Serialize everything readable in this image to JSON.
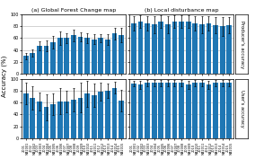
{
  "y_label": "Accuracy (%)",
  "chart_data": [
    {
      "type": "bar",
      "title": "(a) Global Forest Change map",
      "categories": [
        "2001\nMA2001",
        "2002\nMA2002",
        "2003\nMA2003",
        "2004\nMA2004",
        "2005\nMA2005",
        "2006\nMA2006",
        "2007\nMA2007",
        "2008\nMA2008",
        "2009\nMA2009",
        "2010\nMA2010",
        "2011\nMA2011",
        "2012\nMA2012",
        "2013\nMA2013",
        "2014\nMA2014",
        "2015\nMA2015"
      ],
      "values": [
        30,
        35,
        47,
        47,
        53,
        60,
        60,
        65,
        62,
        60,
        58,
        60,
        58,
        68,
        65
      ],
      "errors": [
        5,
        6,
        8,
        9,
        10,
        12,
        8,
        10,
        8,
        9,
        8,
        7,
        9,
        10,
        12
      ],
      "ylim": [
        0,
        100
      ],
      "yticks": [
        0,
        20,
        40,
        60,
        80,
        100
      ],
      "grid": true,
      "tick_labels": "y"
    },
    {
      "type": "bar",
      "title": "(b) Local disturbance map",
      "annotation": "Producer's accuracy",
      "categories": [
        "2001\nMA2001",
        "2002\nMA2002",
        "2003\nMA2003",
        "2004\nMA2004",
        "2005\nMA2005",
        "2006\nMA2006",
        "2007\nMA2007",
        "2008\nMA2008",
        "2009\nMA2009",
        "2010\nMA2010",
        "2011\nMA2011",
        "2012\nMA2012",
        "2013\nMA2013",
        "2014\nMA2014",
        "2015\nMA2015"
      ],
      "values": [
        85,
        88,
        85,
        83,
        88,
        83,
        88,
        88,
        88,
        85,
        83,
        85,
        82,
        80,
        82
      ],
      "errors": [
        12,
        10,
        12,
        14,
        10,
        14,
        10,
        10,
        10,
        12,
        14,
        12,
        14,
        16,
        14
      ],
      "ylim": [
        0,
        100
      ],
      "yticks": [
        0,
        20,
        40,
        60,
        80,
        100
      ],
      "grid": true,
      "tick_labels": false
    },
    {
      "type": "bar",
      "categories": [
        "2001\nMA2001",
        "2002\nMA2002",
        "2003\nMA2003",
        "2004\nMA2004",
        "2005\nMA2005",
        "2006\nMA2006",
        "2007\nMA2007",
        "2008\nMA2008",
        "2009\nMA2009",
        "2010\nMA2010",
        "2011\nMA2011",
        "2012\nMA2012",
        "2013\nMA2013",
        "2014\nMA2014",
        "2015\nMA2015"
      ],
      "values": [
        75,
        68,
        62,
        52,
        57,
        62,
        62,
        65,
        68,
        75,
        72,
        78,
        80,
        85,
        63
      ],
      "errors": [
        18,
        20,
        15,
        22,
        18,
        22,
        18,
        20,
        25,
        22,
        20,
        15,
        12,
        10,
        18
      ],
      "ylim": [
        0,
        100
      ],
      "yticks": [
        0,
        20,
        40,
        60,
        80,
        100
      ],
      "grid": true
    },
    {
      "type": "bar",
      "annotation": "User's accuracy",
      "categories": [
        "2001\nMA2001",
        "2002\nMA2002",
        "2003\nMA2003",
        "2004\nMA2004",
        "2005\nMA2005",
        "2006\nMA2006",
        "2007\nMA2007",
        "2008\nMA2008",
        "2009\nMA2009",
        "2010\nMA2010",
        "2011\nMA2011",
        "2012\nMA2012",
        "2013\nMA2013",
        "2014\nMA2014",
        "2015\nMA2015"
      ],
      "values": [
        92,
        90,
        93,
        93,
        93,
        93,
        93,
        93,
        90,
        93,
        93,
        90,
        93,
        93,
        93
      ],
      "errors": [
        5,
        7,
        5,
        5,
        5,
        5,
        5,
        5,
        7,
        5,
        5,
        7,
        5,
        5,
        5
      ],
      "ylim": [
        0,
        100
      ],
      "yticks": [
        0,
        20,
        40,
        60,
        80,
        100
      ],
      "grid": true,
      "tick_labels": "x"
    }
  ]
}
